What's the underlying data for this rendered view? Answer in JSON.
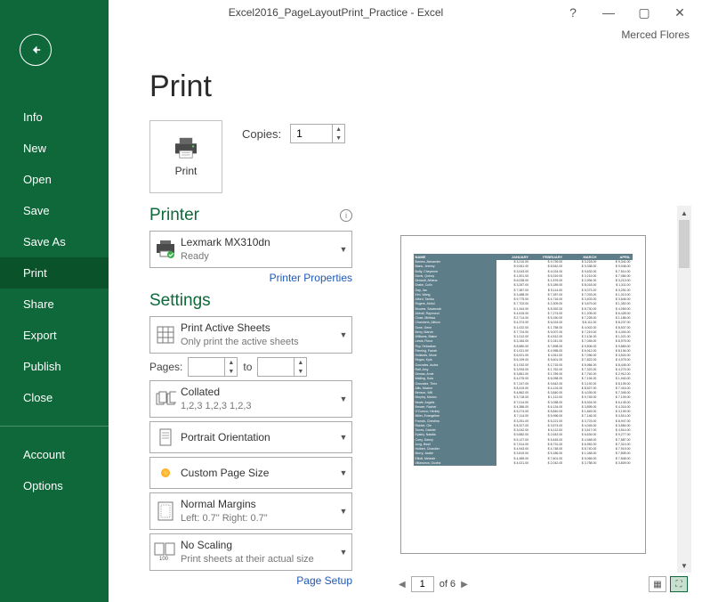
{
  "titlebar": {
    "title": "Excel2016_PageLayoutPrint_Practice - Excel"
  },
  "user": "Merced Flores",
  "sidebar": {
    "items": [
      {
        "label": "Info",
        "active": false
      },
      {
        "label": "New",
        "active": false
      },
      {
        "label": "Open",
        "active": false
      },
      {
        "label": "Save",
        "active": false
      },
      {
        "label": "Save As",
        "active": false
      },
      {
        "label": "Print",
        "active": true
      },
      {
        "label": "Share",
        "active": false
      },
      {
        "label": "Export",
        "active": false
      },
      {
        "label": "Publish",
        "active": false
      },
      {
        "label": "Close",
        "active": false
      }
    ],
    "footer": [
      {
        "label": "Account"
      },
      {
        "label": "Options"
      }
    ]
  },
  "page": {
    "title": "Print"
  },
  "print_btn": {
    "label": "Print"
  },
  "copies": {
    "label": "Copies:",
    "value": "1"
  },
  "printer": {
    "header": "Printer",
    "name": "Lexmark MX310dn",
    "status": "Ready",
    "properties_link": "Printer Properties"
  },
  "settings": {
    "header": "Settings",
    "print_what": {
      "primary": "Print Active Sheets",
      "secondary": "Only print the active sheets"
    },
    "pages_label": "Pages:",
    "pages_from": "",
    "to_label": "to",
    "pages_to": "",
    "collate": {
      "primary": "Collated",
      "secondary": "1,2,3    1,2,3    1,2,3"
    },
    "orientation": {
      "primary": "Portrait Orientation"
    },
    "pagesize": {
      "primary": "Custom Page Size"
    },
    "margins": {
      "primary": "Normal Margins",
      "secondary": "Left:  0.7\"    Right:  0.7\""
    },
    "scaling": {
      "primary": "No Scaling",
      "secondary": "Print sheets at their actual size"
    },
    "page_setup_link": "Page Setup"
  },
  "preview": {
    "current_page": "1",
    "total_label": "of 6",
    "sheet_headers": [
      "NAME",
      "JANUARY",
      "FEBRUARY",
      "MARCH",
      "APRIL"
    ],
    "rows": [
      [
        "Barnes, Alexander",
        "$ 3,210.00",
        "$ 9,739.00",
        "$ 3,218.00",
        "$ 9,341.00"
      ],
      [
        "Blanc, Jeremy",
        "$ 9,061.00",
        "$ 8,542.00",
        "$ 9,338.00",
        "$ 9,048.00"
      ],
      [
        "Bofty, Cheyenne",
        "$ 3,043.00",
        "$ 4,024.00",
        "$ 9,632.00",
        "$ 7,514.00"
      ],
      [
        "Davis, Quincy",
        "$ 1,501.00",
        "$ 5,319.00",
        "$ 3,219.00",
        "$ 7,084.00"
      ],
      [
        "Denault, Athena",
        "$ 6,028.00",
        "$ 1,576.00",
        "$ 2,994.00",
        "$ 3,213.00"
      ],
      [
        "Drake, Colin",
        "$ 3,287.00",
        "$ 5,189.00",
        "$ 8,018.00",
        "$ 1,311.00"
      ],
      [
        "Gay, Jac",
        "$ 7,387.00",
        "$ 5,114.00",
        "$ 9,073.20",
        "$ 3,251.00"
      ],
      [
        "Kim, Wang",
        "$ 3,488.00",
        "$ 7,287.00",
        "$ 7,033.00",
        "$ 1,013.00"
      ],
      [
        "Alford, Tanika",
        "$ 9,775.00",
        "$ 4,716.00",
        "$ 3,403.00",
        "$ 3,646.00"
      ],
      [
        "Rogers, Abdul",
        "$ 7,702.00",
        "$ 2,309.00",
        "$ 3,679.00",
        "$ 1,352.00"
      ],
      [
        "Browne, Savannah",
        "$ 1,344.00",
        "$ 8,392.00",
        "$ 8,730.00",
        "$ 4,059.00"
      ],
      [
        "Abbott, Raymond",
        "$ 4,515.00",
        "$ 7,274.00",
        "$ 1,205.00",
        "$ 6,428.00"
      ],
      [
        "Close, Melissa",
        "$ 2,714.00",
        "$ 5,150.00",
        "$ 7,228.00",
        "$ 1,186.00"
      ],
      [
        "Chambers, Allison",
        "$ 4,374.00",
        "$ 6,024.00",
        "$ 8,111.00",
        "$ 8,237.00"
      ],
      [
        "Sone, Gene",
        "$ 1,022.00",
        "$ 1,758.00",
        "$ 4,002.00",
        "$ 8,537.00"
      ],
      [
        "Berry, Marvin",
        "$ 7,724.00",
        "$ 9,007.00",
        "$ 7,219.00",
        "$ 4,404.00"
      ],
      [
        "Williams, Blaine",
        "$ 1,012.00",
        "$ 4,512.00",
        "$ 2,134.00",
        "$ 1,021.00"
      ],
      [
        "Lewis, Fiona",
        "$ 3,184.00",
        "$ 1,041.00",
        "$ 7,045.00",
        "$ 8,975.00"
      ],
      [
        "Roy, Sebastian",
        "$ 8,580.00",
        "$ 7,898.00",
        "$ 9,506.00",
        "$ 9,869.00"
      ],
      [
        "Fleming, Farrah",
        "$ 1,021.00",
        "$ 4,958.00",
        "$ 6,912.00",
        "$ 8,194.00"
      ],
      [
        "Hollands, Mone",
        "$ 6,921.00",
        "$ 4,511.00",
        "$ 7,096.00",
        "$ 3,524.00"
      ],
      [
        "Regan, Kyla",
        "$ 6,199.00",
        "$ 5,601.00",
        "$ 7,822.00",
        "$ 4,975.00"
      ],
      [
        "Gonzales, Audra",
        "$ 1,032.00",
        "$ 2,715.00",
        "$ 5,984.00",
        "$ 8,445.00"
      ],
      [
        "Ralf, Amy",
        "$ 3,934.00",
        "$ 1,762.00",
        "$ 7,322.00",
        "$ 4,274.00"
      ],
      [
        "Demas, Arnie",
        "$ 3,861.00",
        "$ 1,789.00",
        "$ 7,762.00",
        "$ 2,912.00"
      ],
      [
        "Walling, Sola",
        "$ 4,075.00",
        "$ 6,058.00",
        "$ 7,194.00",
        "$ 1,940.00"
      ],
      [
        "Gonzalez, Theo",
        "$ 7,247.00",
        "$ 9,642.00",
        "$ 3,192.00",
        "$ 8,105.00"
      ],
      [
        "Allis, Maxine",
        "$ 8,419.00",
        "$ 4,124.00",
        "$ 8,527.00",
        "$ 7,416.00"
      ],
      [
        "Benson, Will",
        "$ 4,862.00",
        "$ 3,840.00",
        "$ 4,039.00",
        "$ 7,345.00"
      ],
      [
        "Morphy, Marion",
        "$ 3,718.00",
        "$ 1,112.00",
        "$ 9,745.00",
        "$ 7,109.00"
      ],
      [
        "Neale, Angela",
        "$ 7,014.00",
        "$ 3,058.00",
        "$ 6,924.00",
        "$ 6,145.00"
      ],
      [
        "Brewer, Rachel",
        "$ 4,386.00",
        "$ 6,134.00",
        "$ 3,895.00",
        "$ 4,316.00"
      ],
      [
        "O'Connor, Henley",
        "$ 5,274.00",
        "$ 5,840.00",
        "$ 1,849.00",
        "$ 3,199.00"
      ],
      [
        "Miller, Evangeline",
        "$ 7,114.00",
        "$ 5,996.00",
        "$ 7,146.00",
        "$ 4,514.00"
      ],
      [
        "Francis, Christina",
        "$ 3,251.00",
        "$ 5,221.00",
        "$ 3,723.00",
        "$ 8,947.00"
      ],
      [
        "Richter, Ole",
        "$ 8,327.00",
        "$ 3,574.00",
        "$ 4,045.00",
        "$ 3,854.00"
      ],
      [
        "Torres, Gabriel",
        "$ 3,042.00",
        "$ 6,112.00",
        "$ 3,617.00",
        "$ 4,514.00"
      ],
      [
        "Epsley, Natalia",
        "$ 9,882.00",
        "$ 2,643.00",
        "$ 6,639.00",
        "$ 9,277.00"
      ],
      [
        "Curry, Danny",
        "$ 5,127.00",
        "$ 5,445.00",
        "$ 4,948.00",
        "$ 7,887.00"
      ],
      [
        "Jung, Basil",
        "$ 7,514.00",
        "$ 8,731.00",
        "$ 6,952.00",
        "$ 7,314.00"
      ],
      [
        "Hulbert, Chandler",
        "$ 4,943.00",
        "$ 4,748.00",
        "$ 8,740.00",
        "$ 7,919.00"
      ],
      [
        "Murry, Jackie",
        "$ 3,819.00",
        "$ 5,186.00",
        "$ 1,048.00",
        "$ 7,805.00"
      ],
      [
        "Elliott, Melanie",
        "$ 4,485.00",
        "$ 7,601.00",
        "$ 9,065.00",
        "$ 7,848.00"
      ],
      [
        "Villanueva, Guofra",
        "$ 4,021.00",
        "$ 2,042.00",
        "$ 3,758.00",
        "$ 3,809.00"
      ]
    ]
  },
  "colors": {
    "green": "#0e6839",
    "green_dark": "#0a5229",
    "teal": "#5d7d89",
    "link": "#2158b5",
    "border": "#ababab"
  }
}
